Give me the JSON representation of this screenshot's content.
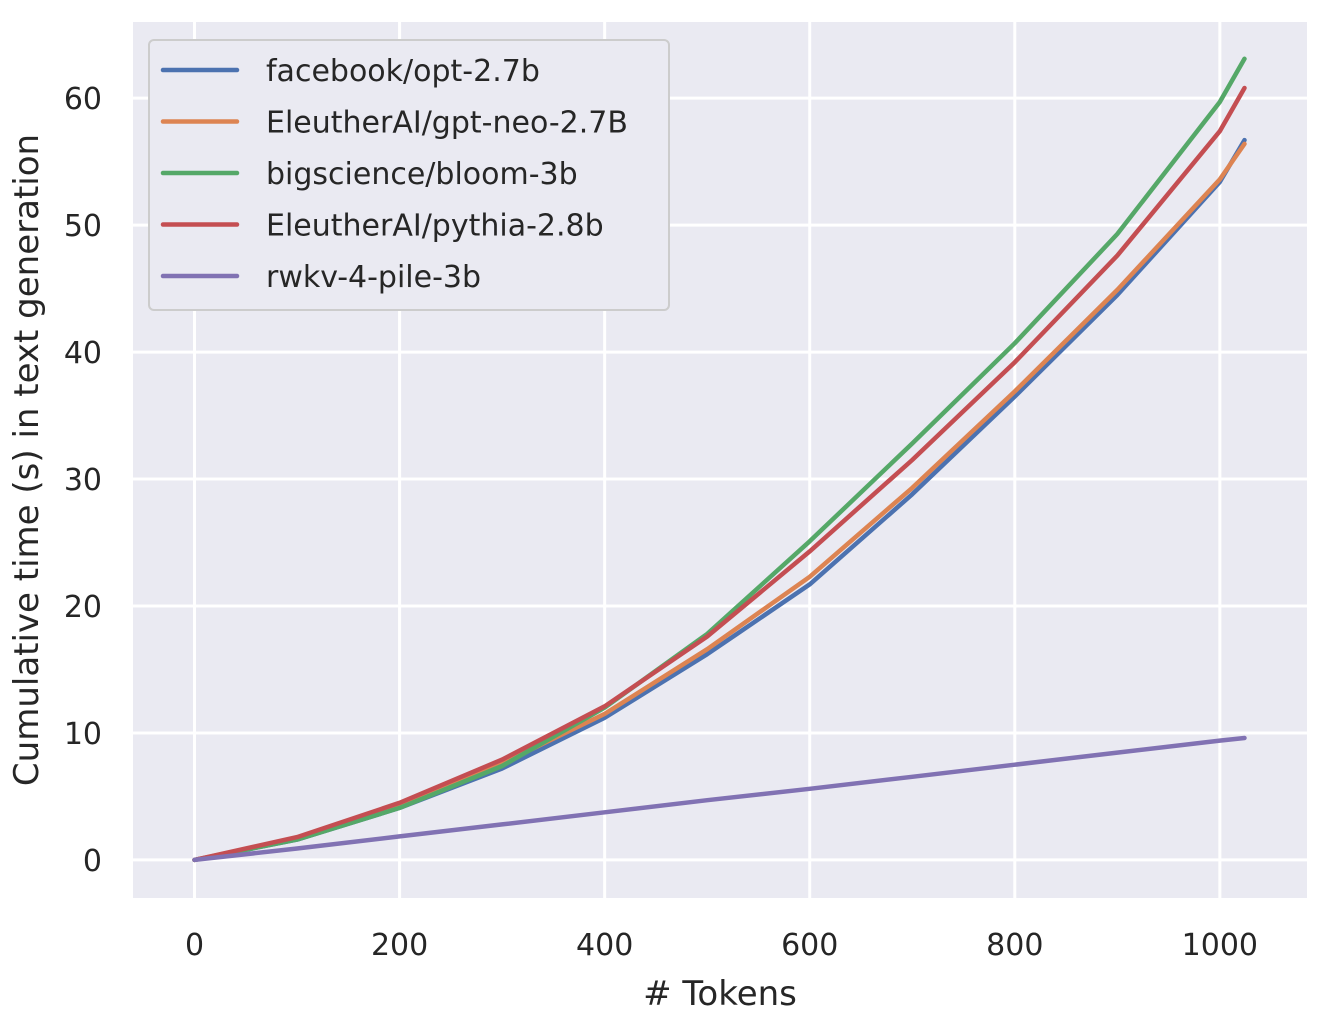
{
  "chart_data": {
    "type": "line",
    "title": "",
    "xlabel": "# Tokens",
    "ylabel": "Cumulative time (s) in text generation",
    "xlim": [
      -60,
      1085
    ],
    "ylim": [
      -3,
      66
    ],
    "xticks": [
      0,
      200,
      400,
      600,
      800,
      1000
    ],
    "yticks": [
      0,
      10,
      20,
      30,
      40,
      50,
      60
    ],
    "grid": true,
    "legend_position": "top-left",
    "series": [
      {
        "name": "facebook/opt-2.7b",
        "color": "#4c72b0",
        "x": [
          0,
          100,
          200,
          300,
          400,
          500,
          600,
          700,
          800,
          900,
          1000,
          1024
        ],
        "y": [
          0,
          1.6,
          4.1,
          7.2,
          11.2,
          16.2,
          21.7,
          28.8,
          36.5,
          44.5,
          53.4,
          56.7
        ]
      },
      {
        "name": "EleutherAI/gpt-neo-2.7B",
        "color": "#dd8452",
        "x": [
          0,
          100,
          200,
          300,
          400,
          500,
          600,
          700,
          800,
          900,
          1000,
          1024
        ],
        "y": [
          0,
          1.7,
          4.3,
          7.6,
          11.5,
          16.6,
          22.3,
          29.3,
          36.9,
          44.9,
          53.6,
          56.4
        ]
      },
      {
        "name": "bigscience/bloom-3b",
        "color": "#55a868",
        "x": [
          0,
          100,
          200,
          300,
          400,
          500,
          600,
          700,
          800,
          900,
          1000,
          1024
        ],
        "y": [
          0,
          1.6,
          4.1,
          7.4,
          12.0,
          17.8,
          25.1,
          32.8,
          40.7,
          49.3,
          59.7,
          63.1
        ]
      },
      {
        "name": "EleutherAI/pythia-2.8b",
        "color": "#c44e52",
        "x": [
          0,
          100,
          200,
          300,
          400,
          500,
          600,
          700,
          800,
          900,
          1000,
          1024
        ],
        "y": [
          0,
          1.8,
          4.5,
          7.9,
          12.1,
          17.6,
          24.3,
          31.5,
          39.2,
          47.6,
          57.4,
          60.8
        ]
      },
      {
        "name": "rwkv-4-pile-3b",
        "color": "#8172b3",
        "x": [
          0,
          100,
          200,
          300,
          400,
          500,
          600,
          700,
          800,
          900,
          1000,
          1024
        ],
        "y": [
          0,
          0.9,
          1.85,
          2.8,
          3.75,
          4.7,
          5.6,
          6.55,
          7.5,
          8.45,
          9.4,
          9.6
        ]
      }
    ]
  }
}
